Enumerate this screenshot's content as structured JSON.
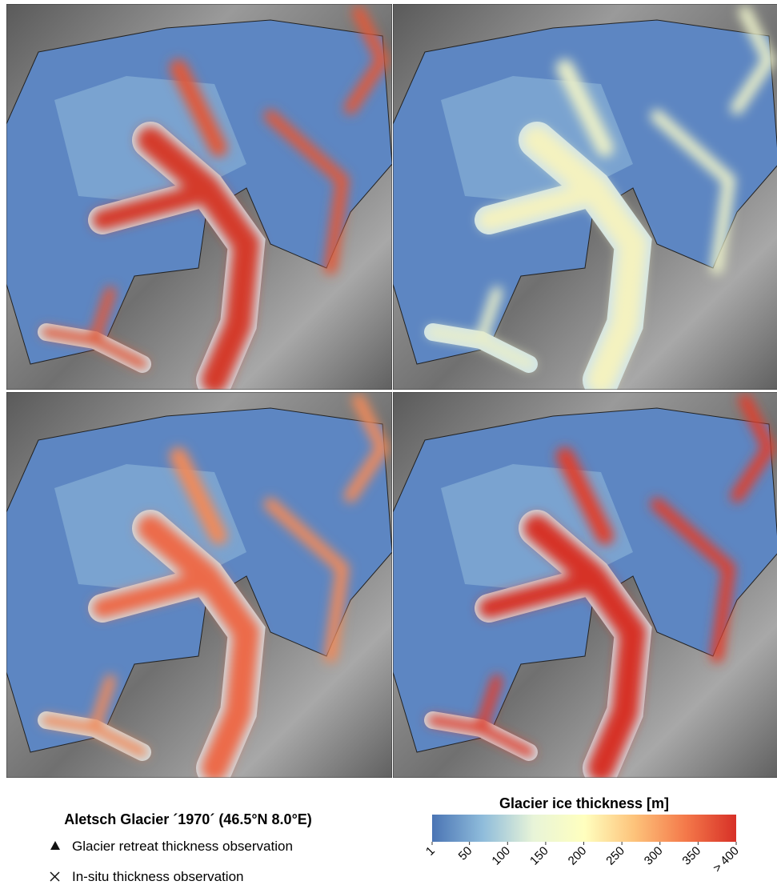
{
  "title": "Aletsch Glacier ´1970´ (46.5°N 8.0°E)",
  "legend": {
    "items": [
      "Glacier retreat thickness observation",
      "In-situ thickness observation"
    ]
  },
  "colorbar": {
    "title": "Glacier ice thickness [m]",
    "range": [
      1,
      400
    ],
    "colors": [
      "#4a74b4",
      "#8fbcdb",
      "#e8f4d8",
      "#ffffbf",
      "#fdc27a",
      "#f4794a",
      "#d73027"
    ],
    "ticks": [
      1,
      50,
      100,
      150,
      200,
      250,
      300,
      350,
      {
        "value": 400,
        "label": "> 400"
      }
    ]
  }
}
